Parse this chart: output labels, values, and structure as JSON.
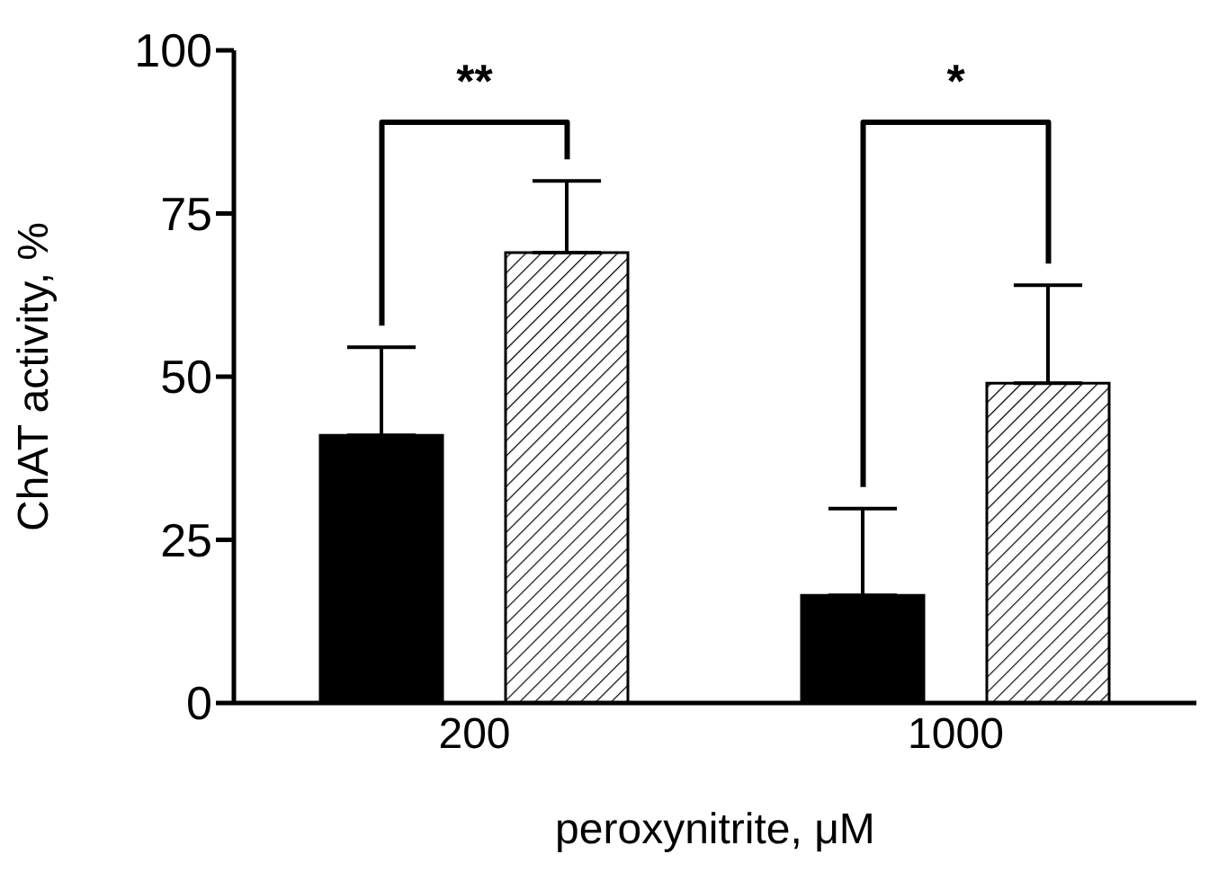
{
  "chart_data": {
    "type": "bar",
    "xlabel": "peroxynitrite, μM",
    "ylabel": "ChAT activity, %",
    "categories": [
      "200",
      "1000"
    ],
    "series": [
      {
        "color": "#000000",
        "values": [
          41,
          16.5
        ],
        "errors": [
          [
            41,
            54.5
          ],
          [
            16.5,
            29.8
          ]
        ]
      },
      {
        "color": "#000000",
        "values": [
          69,
          49
        ],
        "errors": [
          [
            69,
            80
          ],
          [
            49,
            64
          ]
        ]
      }
    ],
    "ylim": [
      0,
      100
    ],
    "yticks": [
      0,
      25,
      50,
      75,
      100
    ],
    "grid": false,
    "legend": false,
    "annotations": [
      "**",
      "*"
    ]
  }
}
